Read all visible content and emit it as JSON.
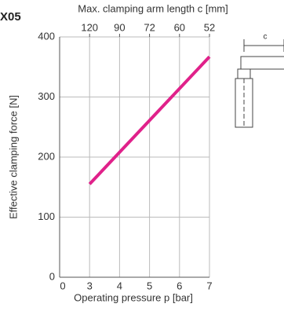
{
  "chart_data": {
    "type": "line",
    "title": "X05",
    "x_label": "Operating pressure p [bar]",
    "y_label": "Effective clamping force [N]",
    "x2_label": "Max. clamping arm length c [mm]",
    "diagram_label": "c",
    "xlim": [
      0,
      7
    ],
    "axis_break": [
      0,
      3
    ],
    "xticks": [
      0,
      3,
      4,
      5,
      6,
      7
    ],
    "x2ticks": [
      {
        "value": 3,
        "label": "120"
      },
      {
        "value": 4,
        "label": "90"
      },
      {
        "value": 5,
        "label": "72"
      },
      {
        "value": 6,
        "label": "60"
      },
      {
        "value": 7,
        "label": "52"
      }
    ],
    "ylim": [
      0,
      400
    ],
    "yticks": [
      0,
      100,
      200,
      300,
      400
    ],
    "grid": true,
    "series": [
      {
        "name": "X05",
        "color": "#e0218a",
        "x": [
          3,
          7
        ],
        "values": [
          155,
          367
        ]
      }
    ]
  }
}
